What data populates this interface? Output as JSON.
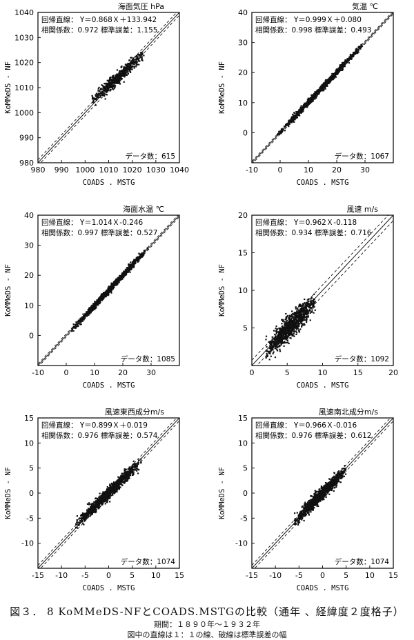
{
  "figure": {
    "title": "図３． 8 KoMMeDS-NFとCOADS.MSTGの比較（通年 、経緯度２度格子）",
    "period": "期間：１８９０年～１９３２年",
    "note": "図中の直線は１：１の線、破線は標準誤差の幅"
  },
  "chart_data": [
    {
      "type": "scatter",
      "title": "海面気圧 hPa",
      "xlabel": "COADS . MSTG",
      "ylabel": "KoMMeDS - NF",
      "xlim": [
        980,
        1040
      ],
      "ylim": [
        980,
        1040
      ],
      "xticks": [
        980,
        990,
        1000,
        1010,
        1020,
        1030,
        1040
      ],
      "yticks": [
        980,
        990,
        1000,
        1010,
        1020,
        1030,
        1040
      ],
      "regression_label": "回帰直線：",
      "regression_eq": "Y＝0.868Ｘ＋133.942",
      "stats_text": "相関係数：0.972 標準誤差：1.155",
      "count_text": "データ数：615",
      "n": 615,
      "slope": 0.868,
      "intercept": 133.942,
      "r": 0.972,
      "se": 1.155,
      "x_range_of_points": [
        1003,
        1025
      ]
    },
    {
      "type": "scatter",
      "title": "気温 ℃",
      "xlabel": "COADS . MSTG",
      "ylabel": "KoMMeDS - NF",
      "xlim": [
        -10,
        40
      ],
      "ylim": [
        -10,
        40
      ],
      "xticks": [
        -10,
        0,
        10,
        20,
        30
      ],
      "yticks": [
        0,
        10,
        20,
        30,
        40
      ],
      "regression_label": "回帰直線：",
      "regression_eq": "Y＝0.999Ｘ＋0.080",
      "stats_text": "相関係数：0.998 標準誤差：0.493",
      "count_text": "データ数：1067",
      "n": 1067,
      "slope": 0.999,
      "intercept": 0.08,
      "r": 0.998,
      "se": 0.493,
      "x_range_of_points": [
        -1,
        29
      ]
    },
    {
      "type": "scatter",
      "title": "海面水温 ℃",
      "xlabel": "COADS . MSTG",
      "ylabel": "KoMMeDS - NF",
      "xlim": [
        -10,
        40
      ],
      "ylim": [
        -10,
        40
      ],
      "xticks": [
        -10,
        0,
        10,
        20,
        30
      ],
      "yticks": [
        0,
        10,
        20,
        30,
        40
      ],
      "regression_label": "回帰直線：",
      "regression_eq": "Y＝1.014Ｘ-0.246",
      "stats_text": "相関係数：0.997 標準誤差：0.527",
      "count_text": "データ数：1085",
      "n": 1085,
      "slope": 1.014,
      "intercept": -0.246,
      "r": 0.997,
      "se": 0.527,
      "x_range_of_points": [
        2,
        29
      ]
    },
    {
      "type": "scatter",
      "title": "風速 m/s",
      "xlabel": "COADS . MSTG",
      "ylabel": "KoMMeDS - NF",
      "xlim": [
        0,
        20
      ],
      "ylim": [
        0,
        20
      ],
      "xticks": [
        0,
        5,
        10,
        15,
        20
      ],
      "yticks": [
        5,
        10,
        15,
        20
      ],
      "regression_label": "回帰直線：",
      "regression_eq": "Y＝0.962Ｘ-0.118",
      "stats_text": "相関係数：0.934 標準誤差：0.716",
      "count_text": "データ数：1092",
      "n": 1092,
      "slope": 0.962,
      "intercept": -0.118,
      "r": 0.934,
      "se": 0.716,
      "x_range_of_points": [
        2,
        9
      ]
    },
    {
      "type": "scatter",
      "title": "風速東西成分m/s",
      "xlabel": "COADS . MSTG",
      "ylabel": "KoMMeDS - NF",
      "xlim": [
        -15,
        15
      ],
      "ylim": [
        -15,
        15
      ],
      "xticks": [
        -15,
        -10,
        -5,
        0,
        5,
        10,
        15
      ],
      "yticks": [
        -10,
        -5,
        0,
        5,
        10,
        15
      ],
      "regression_label": "回帰直線：",
      "regression_eq": "Y＝0.899Ｘ＋0.019",
      "stats_text": "相関係数：0.976 標準誤差：0.574",
      "count_text": "データ数：1074",
      "n": 1074,
      "slope": 0.899,
      "intercept": 0.019,
      "r": 0.976,
      "se": 0.574,
      "x_range_of_points": [
        -7,
        7
      ]
    },
    {
      "type": "scatter",
      "title": "風速南北成分m/s",
      "xlabel": "COADS . MSTG",
      "ylabel": "KoMMeDS - NF",
      "xlim": [
        -15,
        15
      ],
      "ylim": [
        -15,
        15
      ],
      "xticks": [
        -15,
        -10,
        -5,
        0,
        5,
        10,
        15
      ],
      "yticks": [
        -10,
        -5,
        0,
        5,
        10,
        15
      ],
      "regression_label": "回帰直線：",
      "regression_eq": "Y＝0.966Ｘ-0.016",
      "stats_text": "相関係数：0.976 標準誤差：0.612",
      "count_text": "データ数：1074",
      "n": 1074,
      "slope": 0.966,
      "intercept": -0.016,
      "r": 0.976,
      "se": 0.612,
      "x_range_of_points": [
        -6,
        5
      ]
    }
  ]
}
